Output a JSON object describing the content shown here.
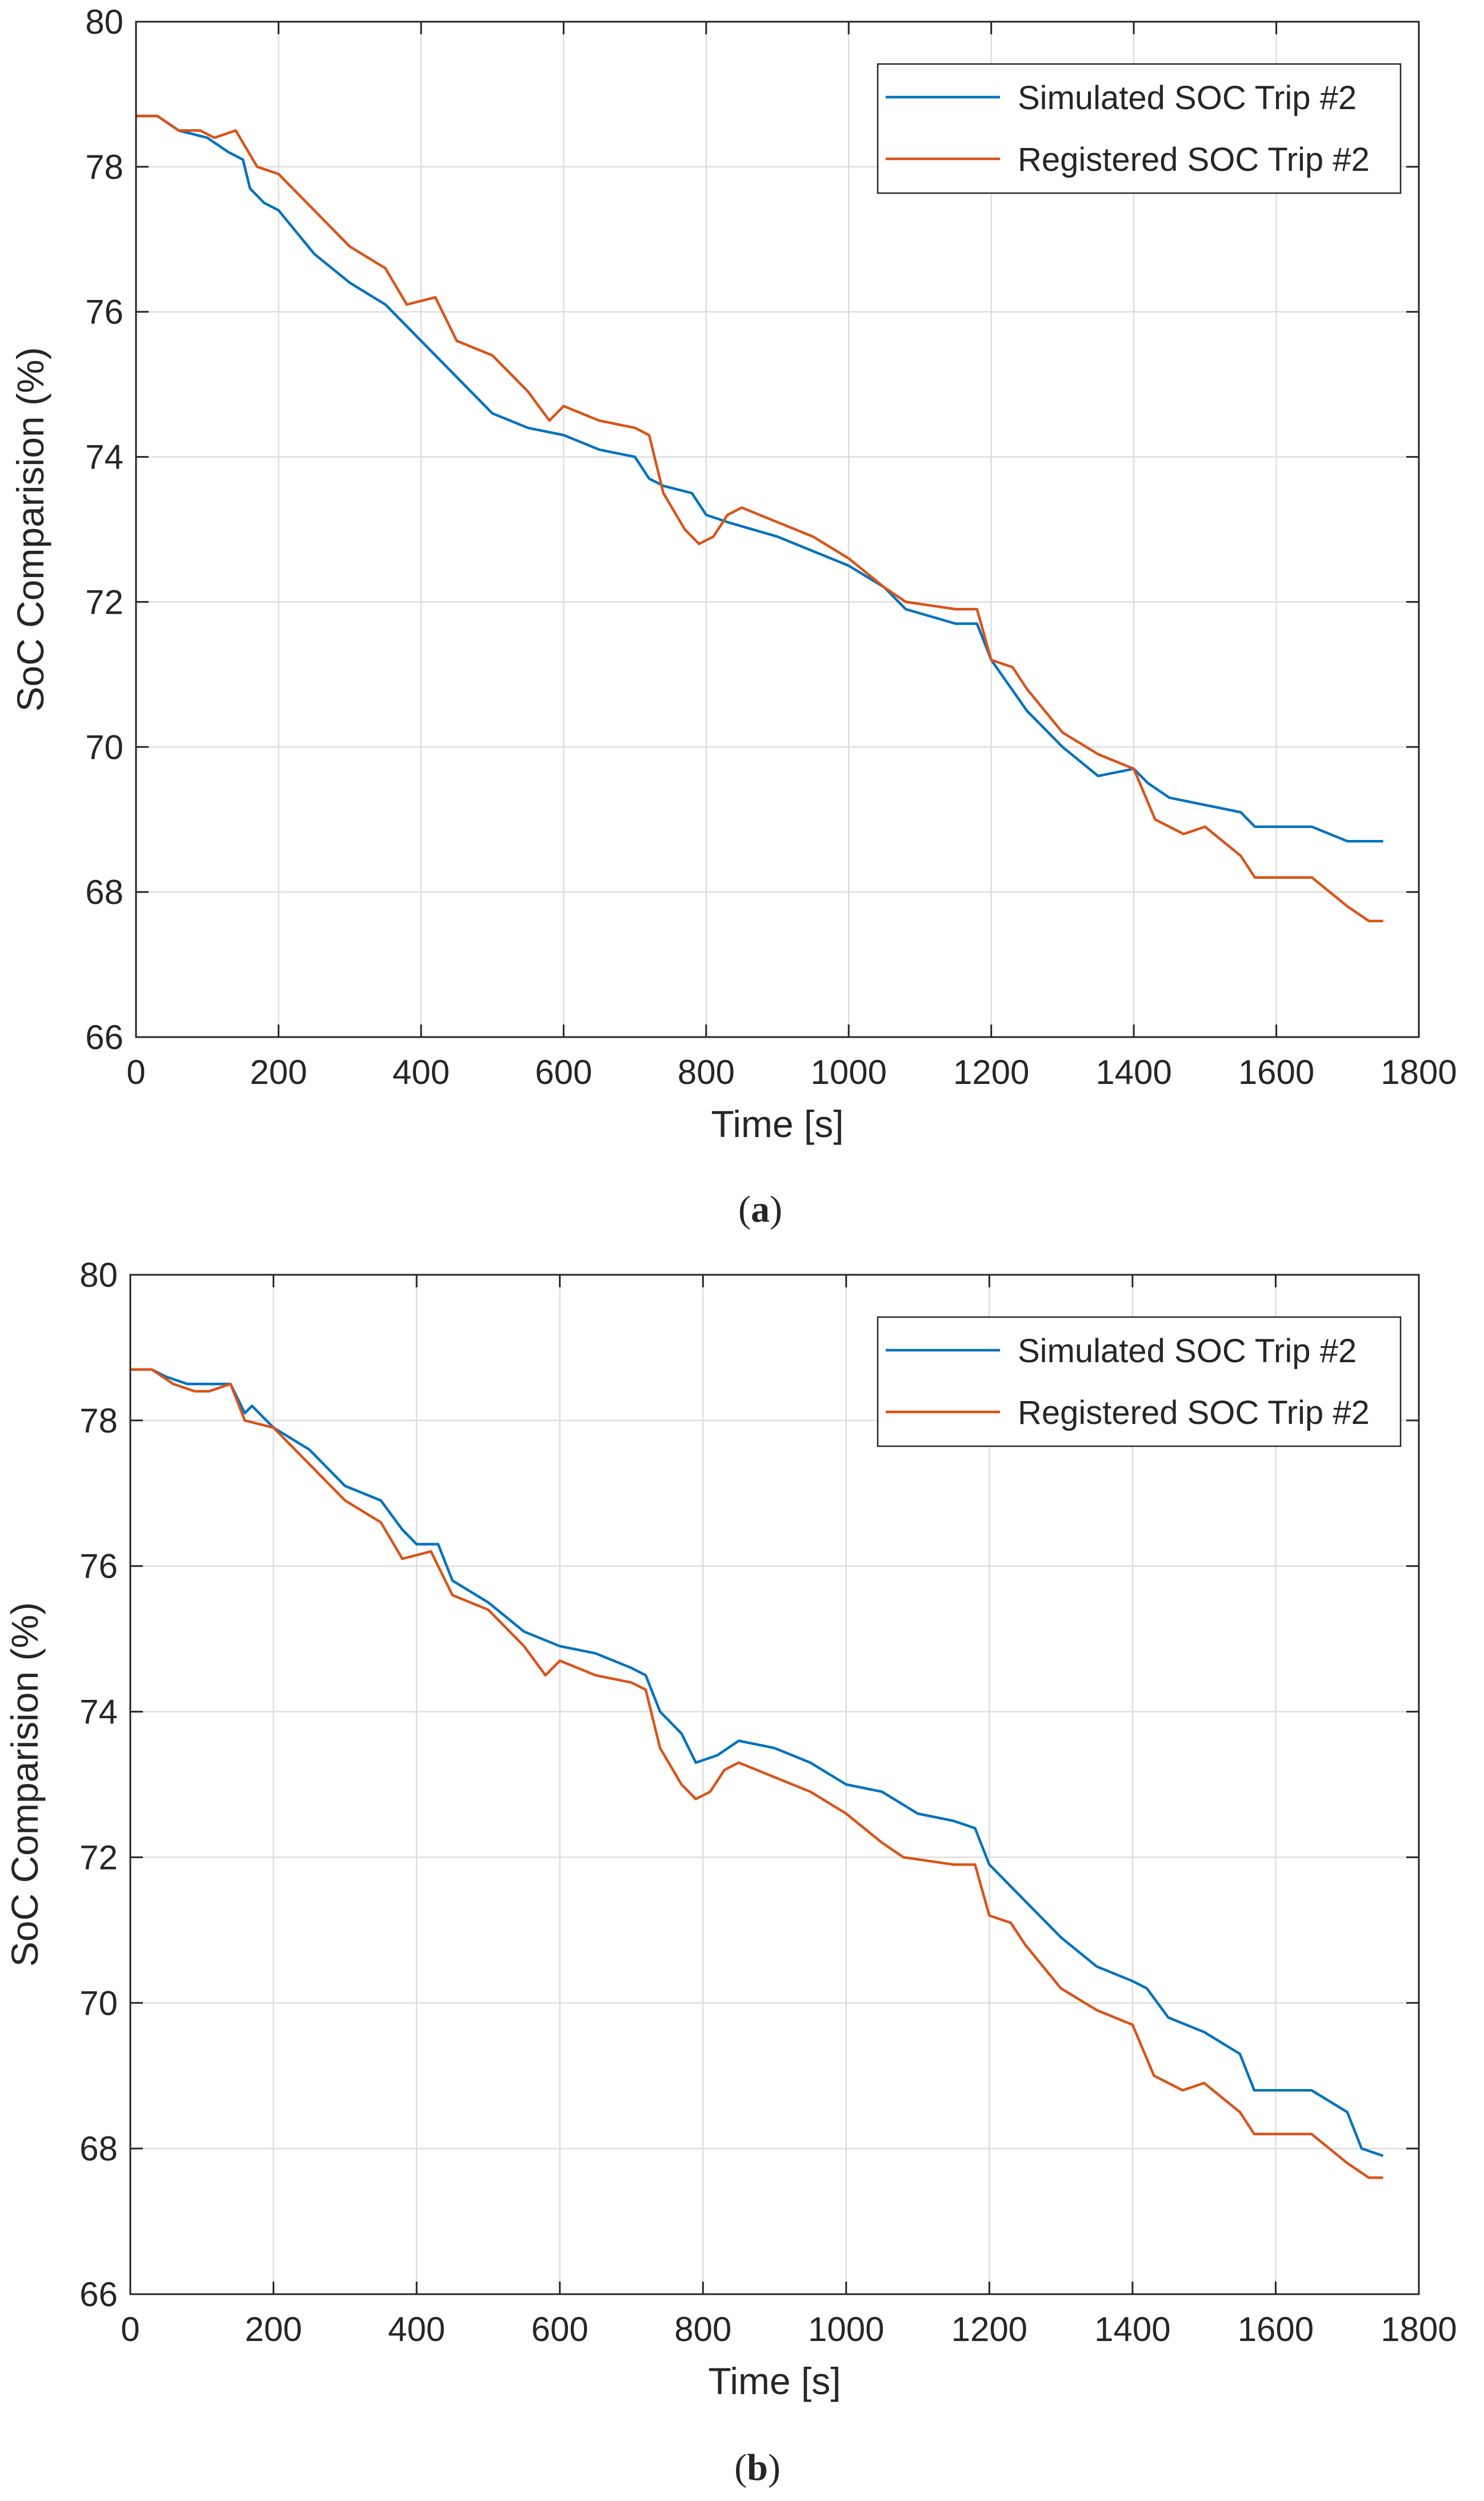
{
  "colors": {
    "simulated": "#0072BD",
    "registered": "#D95319",
    "grid": "#DEDEDE",
    "axis": "#262626"
  },
  "chart_data": [
    {
      "type": "line",
      "caption_paren_open": "(",
      "caption_letter": "a",
      "caption_paren_close": ")",
      "xlabel": "Time [s]",
      "ylabel": "SoC Comparision (%)",
      "xlim": [
        0,
        1800
      ],
      "ylim": [
        66,
        80
      ],
      "xticks": [
        0,
        200,
        400,
        600,
        800,
        1000,
        1200,
        1400,
        1600,
        1800
      ],
      "yticks": [
        66,
        68,
        70,
        72,
        74,
        76,
        78,
        80
      ],
      "grid": true,
      "legend_position": "top-right",
      "series": [
        {
          "name": "Simulated SOC Trip #2",
          "color": "#0072BD",
          "points": [
            [
              0,
              78.7
            ],
            [
              30,
              78.7
            ],
            [
              60,
              78.5
            ],
            [
              100,
              78.4
            ],
            [
              130,
              78.2
            ],
            [
              150,
              78.1
            ],
            [
              160,
              77.7
            ],
            [
              180,
              77.5
            ],
            [
              200,
              77.4
            ],
            [
              250,
              76.8
            ],
            [
              300,
              76.4
            ],
            [
              350,
              76.1
            ],
            [
              400,
              75.6
            ],
            [
              450,
              75.1
            ],
            [
              500,
              74.6
            ],
            [
              550,
              74.4
            ],
            [
              600,
              74.3
            ],
            [
              650,
              74.1
            ],
            [
              700,
              74.0
            ],
            [
              720,
              73.7
            ],
            [
              740,
              73.6
            ],
            [
              780,
              73.5
            ],
            [
              800,
              73.2
            ],
            [
              830,
              73.1
            ],
            [
              900,
              72.9
            ],
            [
              1000,
              72.5
            ],
            [
              1050,
              72.2
            ],
            [
              1080,
              71.9
            ],
            [
              1150,
              71.7
            ],
            [
              1180,
              71.7
            ],
            [
              1200,
              71.2
            ],
            [
              1250,
              70.5
            ],
            [
              1300,
              70.0
            ],
            [
              1350,
              69.6
            ],
            [
              1400,
              69.7
            ],
            [
              1420,
              69.5
            ],
            [
              1450,
              69.3
            ],
            [
              1500,
              69.2
            ],
            [
              1550,
              69.1
            ],
            [
              1570,
              68.9
            ],
            [
              1650,
              68.9
            ],
            [
              1700,
              68.7
            ],
            [
              1750,
              68.7
            ]
          ]
        },
        {
          "name": "Registered SOC Trip #2",
          "color": "#D95319",
          "points": [
            [
              0,
              78.7
            ],
            [
              30,
              78.7
            ],
            [
              60,
              78.5
            ],
            [
              90,
              78.5
            ],
            [
              110,
              78.4
            ],
            [
              140,
              78.5
            ],
            [
              170,
              78.0
            ],
            [
              200,
              77.9
            ],
            [
              250,
              77.4
            ],
            [
              300,
              76.9
            ],
            [
              350,
              76.6
            ],
            [
              380,
              76.1
            ],
            [
              420,
              76.2
            ],
            [
              450,
              75.6
            ],
            [
              500,
              75.4
            ],
            [
              550,
              74.9
            ],
            [
              580,
              74.5
            ],
            [
              600,
              74.7
            ],
            [
              650,
              74.5
            ],
            [
              700,
              74.4
            ],
            [
              720,
              74.3
            ],
            [
              740,
              73.5
            ],
            [
              770,
              73.0
            ],
            [
              790,
              72.8
            ],
            [
              810,
              72.9
            ],
            [
              830,
              73.2
            ],
            [
              850,
              73.3
            ],
            [
              900,
              73.1
            ],
            [
              950,
              72.9
            ],
            [
              1000,
              72.6
            ],
            [
              1050,
              72.2
            ],
            [
              1080,
              72.0
            ],
            [
              1150,
              71.9
            ],
            [
              1180,
              71.9
            ],
            [
              1200,
              71.2
            ],
            [
              1230,
              71.1
            ],
            [
              1250,
              70.8
            ],
            [
              1300,
              70.2
            ],
            [
              1350,
              69.9
            ],
            [
              1400,
              69.7
            ],
            [
              1430,
              69.0
            ],
            [
              1470,
              68.8
            ],
            [
              1500,
              68.9
            ],
            [
              1550,
              68.5
            ],
            [
              1570,
              68.2
            ],
            [
              1650,
              68.2
            ],
            [
              1700,
              67.8
            ],
            [
              1730,
              67.6
            ],
            [
              1750,
              67.6
            ]
          ]
        }
      ]
    },
    {
      "type": "line",
      "caption_paren_open": "(",
      "caption_letter": "b",
      "caption_paren_close": ")",
      "xlabel": "Time [s]",
      "ylabel": "SoC Comparision (%)",
      "xlim": [
        0,
        1800
      ],
      "ylim": [
        66,
        80
      ],
      "xticks": [
        0,
        200,
        400,
        600,
        800,
        1000,
        1200,
        1400,
        1600,
        1800
      ],
      "yticks": [
        66,
        68,
        70,
        72,
        74,
        76,
        78,
        80
      ],
      "grid": true,
      "legend_position": "top-right",
      "series": [
        {
          "name": "Simulated SOC Trip #2",
          "color": "#0072BD",
          "points": [
            [
              0,
              78.7
            ],
            [
              30,
              78.7
            ],
            [
              50,
              78.6
            ],
            [
              80,
              78.5
            ],
            [
              100,
              78.5
            ],
            [
              140,
              78.5
            ],
            [
              160,
              78.1
            ],
            [
              170,
              78.2
            ],
            [
              200,
              77.9
            ],
            [
              250,
              77.6
            ],
            [
              300,
              77.1
            ],
            [
              350,
              76.9
            ],
            [
              380,
              76.5
            ],
            [
              400,
              76.3
            ],
            [
              430,
              76.3
            ],
            [
              450,
              75.8
            ],
            [
              500,
              75.5
            ],
            [
              550,
              75.1
            ],
            [
              600,
              74.9
            ],
            [
              650,
              74.8
            ],
            [
              700,
              74.6
            ],
            [
              720,
              74.5
            ],
            [
              740,
              74.0
            ],
            [
              770,
              73.7
            ],
            [
              790,
              73.3
            ],
            [
              820,
              73.4
            ],
            [
              850,
              73.6
            ],
            [
              900,
              73.5
            ],
            [
              950,
              73.3
            ],
            [
              1000,
              73.0
            ],
            [
              1050,
              72.9
            ],
            [
              1100,
              72.6
            ],
            [
              1150,
              72.5
            ],
            [
              1180,
              72.4
            ],
            [
              1200,
              71.9
            ],
            [
              1250,
              71.4
            ],
            [
              1300,
              70.9
            ],
            [
              1350,
              70.5
            ],
            [
              1400,
              70.3
            ],
            [
              1420,
              70.2
            ],
            [
              1450,
              69.8
            ],
            [
              1500,
              69.6
            ],
            [
              1550,
              69.3
            ],
            [
              1570,
              68.8
            ],
            [
              1650,
              68.8
            ],
            [
              1700,
              68.5
            ],
            [
              1720,
              68.0
            ],
            [
              1750,
              67.9
            ]
          ]
        },
        {
          "name": "Registered SOC Trip #2",
          "color": "#D95319",
          "points": [
            [
              0,
              78.7
            ],
            [
              30,
              78.7
            ],
            [
              60,
              78.5
            ],
            [
              90,
              78.4
            ],
            [
              110,
              78.4
            ],
            [
              140,
              78.5
            ],
            [
              160,
              78.0
            ],
            [
              200,
              77.9
            ],
            [
              250,
              77.4
            ],
            [
              300,
              76.9
            ],
            [
              350,
              76.6
            ],
            [
              380,
              76.1
            ],
            [
              420,
              76.2
            ],
            [
              450,
              75.6
            ],
            [
              500,
              75.4
            ],
            [
              550,
              74.9
            ],
            [
              580,
              74.5
            ],
            [
              600,
              74.7
            ],
            [
              650,
              74.5
            ],
            [
              700,
              74.4
            ],
            [
              720,
              74.3
            ],
            [
              740,
              73.5
            ],
            [
              770,
              73.0
            ],
            [
              790,
              72.8
            ],
            [
              810,
              72.9
            ],
            [
              830,
              73.2
            ],
            [
              850,
              73.3
            ],
            [
              900,
              73.1
            ],
            [
              950,
              72.9
            ],
            [
              1000,
              72.6
            ],
            [
              1050,
              72.2
            ],
            [
              1080,
              72.0
            ],
            [
              1150,
              71.9
            ],
            [
              1180,
              71.9
            ],
            [
              1200,
              71.2
            ],
            [
              1230,
              71.1
            ],
            [
              1250,
              70.8
            ],
            [
              1300,
              70.2
            ],
            [
              1350,
              69.9
            ],
            [
              1400,
              69.7
            ],
            [
              1430,
              69.0
            ],
            [
              1470,
              68.8
            ],
            [
              1500,
              68.9
            ],
            [
              1550,
              68.5
            ],
            [
              1570,
              68.2
            ],
            [
              1650,
              68.2
            ],
            [
              1700,
              67.8
            ],
            [
              1730,
              67.6
            ],
            [
              1750,
              67.6
            ]
          ]
        }
      ]
    }
  ]
}
